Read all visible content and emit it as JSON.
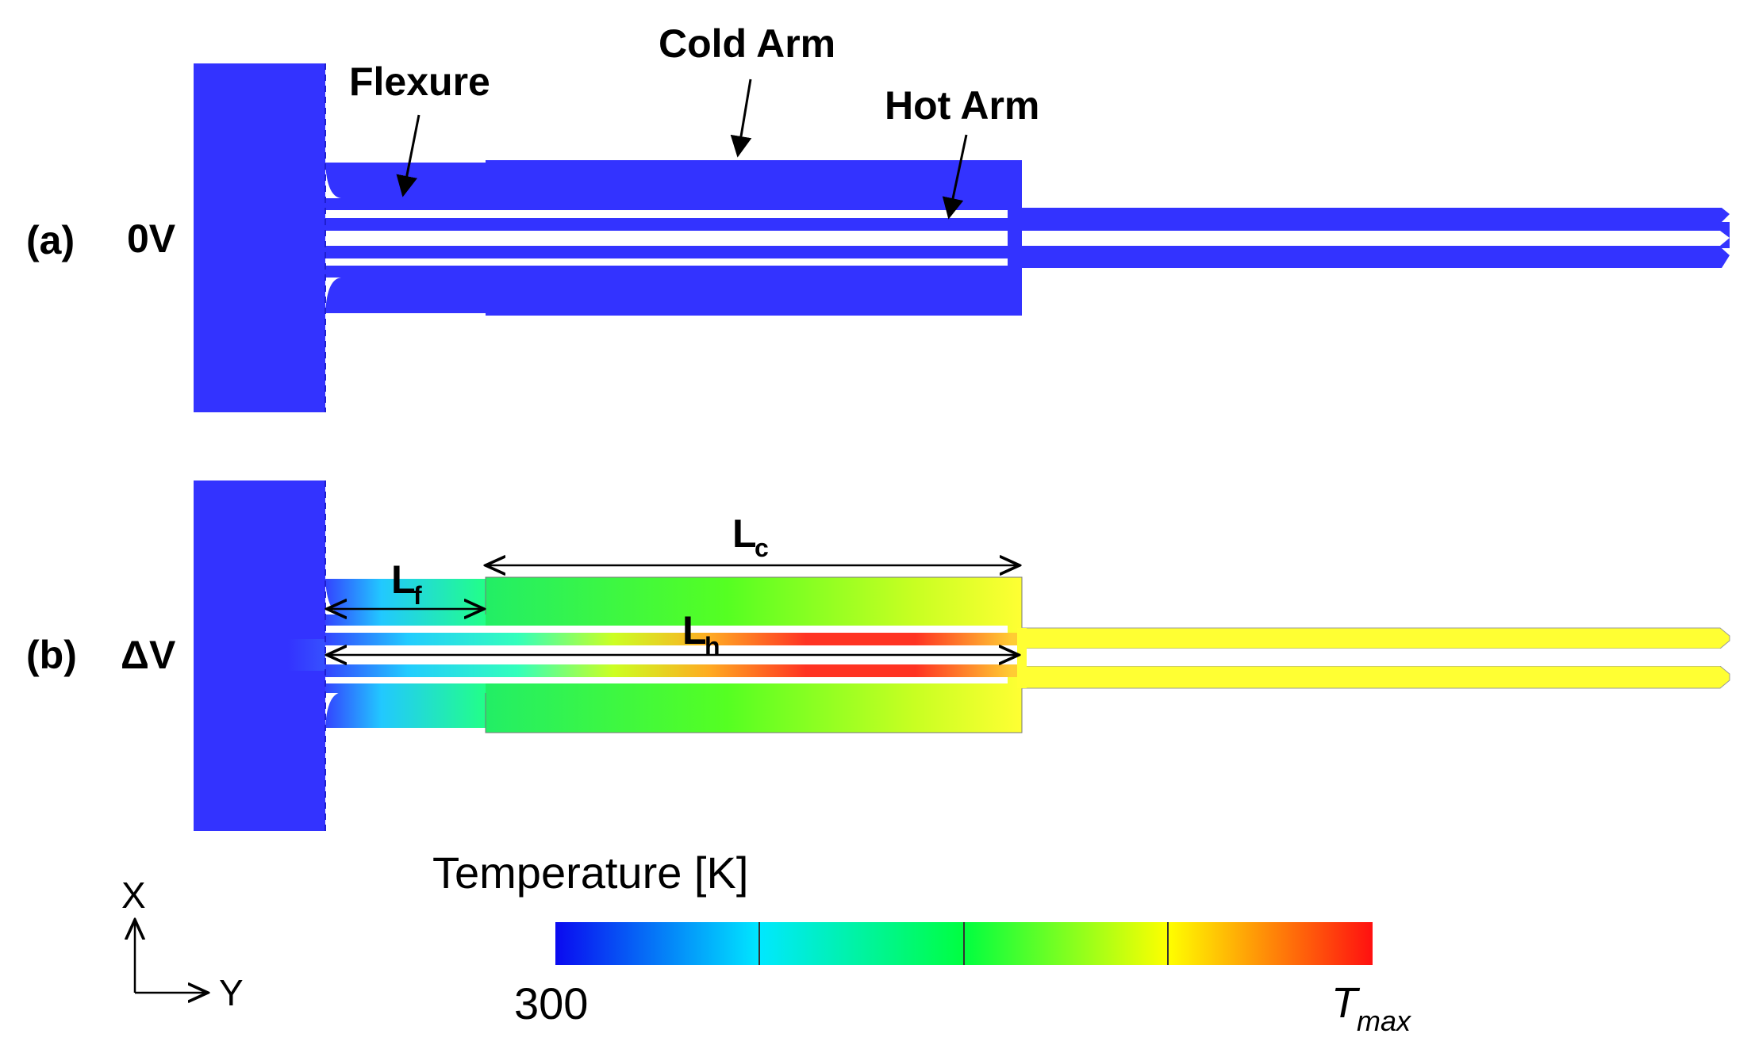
{
  "panel_a": {
    "tag": "(a)",
    "voltage": "0V",
    "label_flexure": "Flexure",
    "label_cold_arm": "Cold Arm",
    "label_hot_arm": "Hot Arm"
  },
  "panel_b": {
    "tag": "(b)",
    "voltage": "ΔV",
    "dim_f_main": "L",
    "dim_f_sub": "f",
    "dim_c_main": "L",
    "dim_c_sub": "c",
    "dim_h_main": "L",
    "dim_h_sub": "h"
  },
  "axes": {
    "x_label": "X",
    "y_label": "Y"
  },
  "colorbar": {
    "title": "Temperature [K]",
    "min_label": "300",
    "max_label_main": "T",
    "max_label_sub": "max",
    "stops": [
      "#0a0af0",
      "#00e8ff",
      "#00ff40",
      "#ffff00",
      "#ff1010"
    ]
  },
  "colors": {
    "cold": "#3333ff",
    "cold_edge": "#1f1fcf",
    "arrow": "#000000"
  }
}
